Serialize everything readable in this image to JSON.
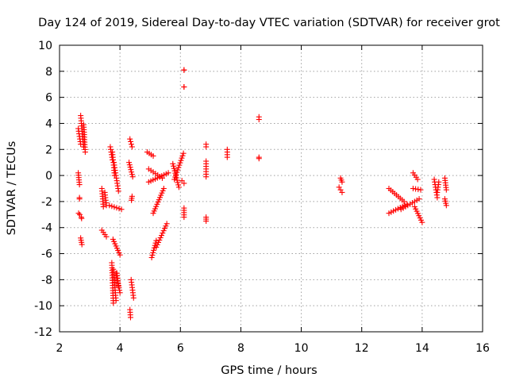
{
  "chart_data": {
    "type": "scatter",
    "title": "Day 124 of 2019, Sidereal Day-to-day VTEC variation (SDTVAR) for receiver grot",
    "xlabel": "GPS time / hours",
    "ylabel": "SDTVAR / TECUs",
    "xlim": [
      2,
      16
    ],
    "ylim": [
      -12,
      10
    ],
    "xticks": [
      2,
      4,
      6,
      8,
      10,
      12,
      14,
      16
    ],
    "yticks": [
      -12,
      -10,
      -8,
      -6,
      -4,
      -2,
      0,
      2,
      4,
      6,
      8,
      10
    ],
    "grid": true,
    "marker": "+",
    "color": "#ff0000",
    "series": [
      {
        "name": "SDTVAR",
        "segments": [
          [
            2.62,
            0.2,
            2.66,
            -0.7
          ],
          [
            2.66,
            -1.7,
            2.66,
            -1.8
          ],
          [
            2.63,
            -2.9,
            2.67,
            -3.0
          ],
          [
            2.72,
            -3.2,
            2.73,
            -3.3
          ],
          [
            2.7,
            -4.8,
            2.74,
            -5.3
          ],
          [
            2.62,
            3.6,
            2.7,
            2.4
          ],
          [
            2.7,
            4.6,
            2.8,
            2.2
          ],
          [
            2.8,
            3.9,
            2.85,
            1.8
          ],
          [
            3.4,
            -1.0,
            3.45,
            -2.4
          ],
          [
            3.5,
            -1.3,
            3.55,
            -2.3
          ],
          [
            3.4,
            -4.2,
            3.55,
            -4.7
          ],
          [
            3.68,
            2.2,
            3.75,
            1.2
          ],
          [
            3.75,
            1.8,
            3.82,
            0.0
          ],
          [
            3.8,
            1.0,
            3.95,
            -1.2
          ],
          [
            3.65,
            -2.3,
            4.05,
            -2.6
          ],
          [
            4.3,
            1.0,
            4.42,
            -0.1
          ],
          [
            4.4,
            -1.6,
            4.38,
            -1.9
          ],
          [
            4.33,
            2.8,
            4.4,
            2.2
          ],
          [
            3.77,
            -4.9,
            4.0,
            -6.1
          ],
          [
            3.9,
            -7.5,
            3.95,
            -8.5
          ],
          [
            3.73,
            -6.7,
            3.78,
            -9.8
          ],
          [
            3.78,
            -7.2,
            3.87,
            -9.6
          ],
          [
            3.87,
            -7.5,
            4.0,
            -9.0
          ],
          [
            4.37,
            -8.0,
            4.45,
            -9.4
          ],
          [
            4.33,
            -10.3,
            4.35,
            -10.9
          ],
          [
            4.9,
            1.8,
            5.1,
            1.5
          ],
          [
            4.95,
            0.5,
            5.4,
            -0.2
          ],
          [
            4.95,
            -0.5,
            5.6,
            0.2
          ],
          [
            5.1,
            -2.9,
            5.45,
            -1.0
          ],
          [
            5.05,
            -6.3,
            5.2,
            -5.0
          ],
          [
            5.2,
            -5.5,
            5.55,
            -3.7
          ],
          [
            5.8,
            -0.3,
            6.1,
            1.7
          ],
          [
            5.75,
            0.9,
            5.95,
            -0.9
          ],
          [
            6.05,
            -0.4,
            6.12,
            -0.6
          ],
          [
            6.12,
            8.1,
            6.12,
            8.1
          ],
          [
            6.12,
            6.8,
            6.12,
            6.8
          ],
          [
            6.12,
            -2.5,
            6.12,
            -3.2
          ],
          [
            6.85,
            2.4,
            6.85,
            2.2
          ],
          [
            6.85,
            1.1,
            6.85,
            -0.1
          ],
          [
            6.85,
            -3.2,
            6.85,
            -3.5
          ],
          [
            7.55,
            2.0,
            7.55,
            1.4
          ],
          [
            8.6,
            4.5,
            8.6,
            4.3
          ],
          [
            8.6,
            1.4,
            8.6,
            1.3
          ],
          [
            11.3,
            -0.2,
            11.35,
            -0.5
          ],
          [
            11.25,
            -0.9,
            11.35,
            -1.3
          ],
          [
            12.9,
            -1.0,
            13.4,
            -2.0
          ],
          [
            12.9,
            -2.9,
            13.5,
            -2.2
          ],
          [
            13.3,
            -2.6,
            13.9,
            -1.8
          ],
          [
            13.7,
            0.2,
            13.85,
            -0.3
          ],
          [
            13.7,
            -1.0,
            13.95,
            -1.1
          ],
          [
            13.75,
            -2.4,
            14.0,
            -3.6
          ],
          [
            14.4,
            -0.3,
            14.5,
            -1.7
          ],
          [
            14.5,
            -1.3,
            14.55,
            -0.5
          ],
          [
            14.75,
            -0.2,
            14.8,
            -1.1
          ],
          [
            14.75,
            -1.8,
            14.8,
            -2.3
          ]
        ]
      }
    ]
  }
}
